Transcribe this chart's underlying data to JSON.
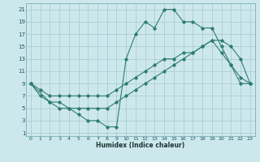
{
  "xlabel": "Humidex (Indice chaleur)",
  "bg_color": "#cde8ec",
  "grid_color": "#aacdd4",
  "line_color": "#2e7d72",
  "xlim": [
    -0.5,
    23.5
  ],
  "ylim": [
    0.5,
    22
  ],
  "xticks": [
    0,
    1,
    2,
    3,
    4,
    5,
    6,
    7,
    8,
    9,
    10,
    11,
    12,
    13,
    14,
    15,
    16,
    17,
    18,
    19,
    20,
    21,
    22,
    23
  ],
  "yticks": [
    1,
    3,
    5,
    7,
    9,
    11,
    13,
    15,
    17,
    19,
    21
  ],
  "line1_x": [
    0,
    1,
    2,
    3,
    4,
    5,
    6,
    7,
    8,
    9,
    10,
    11,
    12,
    13,
    14,
    15,
    16,
    17,
    18,
    19,
    20,
    21,
    22,
    23
  ],
  "line1_y": [
    9,
    7,
    6,
    5,
    5,
    4,
    3,
    3,
    2,
    2,
    13,
    17,
    19,
    18,
    21,
    21,
    19,
    19,
    18,
    18,
    15,
    12,
    10,
    9
  ],
  "line2_x": [
    0,
    1,
    2,
    3,
    4,
    5,
    6,
    7,
    8,
    9,
    10,
    11,
    12,
    13,
    14,
    15,
    16,
    17,
    18,
    19,
    20,
    21,
    22,
    23
  ],
  "line2_y": [
    9,
    8,
    7,
    7,
    7,
    7,
    7,
    7,
    7,
    8,
    9,
    10,
    11,
    12,
    13,
    13,
    14,
    14,
    15,
    16,
    14,
    12,
    9,
    9
  ],
  "line3_x": [
    0,
    2,
    3,
    4,
    5,
    6,
    7,
    8,
    9,
    10,
    11,
    12,
    13,
    14,
    15,
    16,
    17,
    18,
    19,
    20,
    21,
    22,
    23
  ],
  "line3_y": [
    9,
    6,
    6,
    5,
    5,
    5,
    5,
    5,
    6,
    7,
    8,
    9,
    10,
    11,
    12,
    13,
    14,
    15,
    16,
    16,
    15,
    13,
    9
  ]
}
